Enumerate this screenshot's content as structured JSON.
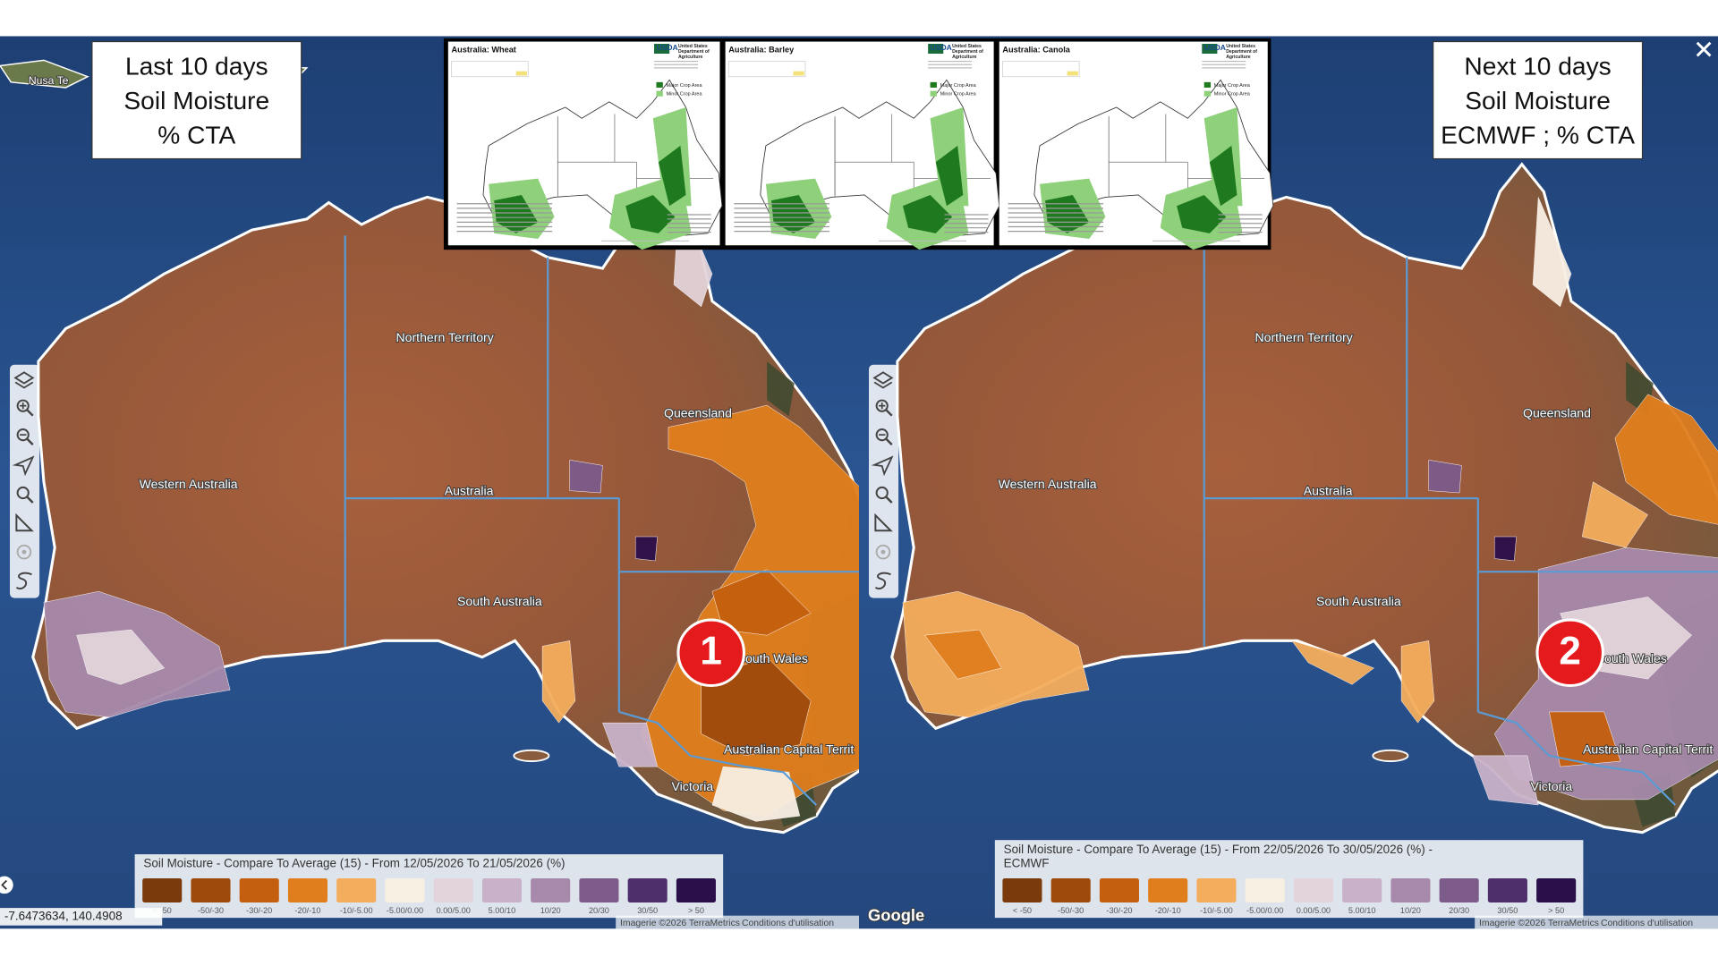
{
  "panels": [
    {
      "label_lines": [
        "Last 10 days",
        "Soil Moisture",
        "% CTA"
      ],
      "marker": "1",
      "legend_title_lines": [
        "Soil Moisture - Compare To Average (15) - From 12/05/2026 To 21/05/2026 (%)"
      ],
      "region_labels": [
        "Northern Territory",
        "Queensland",
        "Western Australia",
        "Australia",
        "South Australia",
        "South Wales",
        "Australian Capital Territ",
        "Victoria"
      ]
    },
    {
      "label_lines": [
        "Next 10 days",
        "Soil Moisture",
        "ECMWF ; % CTA"
      ],
      "marker": "2",
      "legend_title_lines": [
        "Soil Moisture - Compare To Average (15) - From 22/05/2026 To 30/05/2026 (%) -",
        "ECMWF"
      ],
      "region_labels": [
        "Northern Territory",
        "Queensland",
        "Western Australia",
        "Australia",
        "South Australia",
        "South Wales",
        "Australian Capital Territ",
        "Victoria"
      ]
    }
  ],
  "legend_classes": [
    "< -50",
    "-50/-30",
    "-30/-20",
    "-20/-10",
    "-10/-5.00",
    "-5.00/0.00",
    "0.00/5.00",
    "5.00/10",
    "10/20",
    "20/30",
    "30/50",
    "> 50"
  ],
  "insets": [
    {
      "title": "Australia:  Wheat"
    },
    {
      "title": "Australia:  Barley"
    },
    {
      "title": "Australia:  Canola"
    }
  ],
  "usda": {
    "logo": "USDA",
    "agency_lines": [
      "United States",
      "Department of",
      "Agriculture"
    ]
  },
  "crop_legend": [
    "Major Crop Area",
    "Minor Crop Area"
  ],
  "coordinates": "-7.6473634, 140.4908",
  "google": "Google",
  "imagery": "Imagerie ©2026 TerraMetrics",
  "terms": "Conditions d'utilisation",
  "place_label": "Nusa Te"
}
